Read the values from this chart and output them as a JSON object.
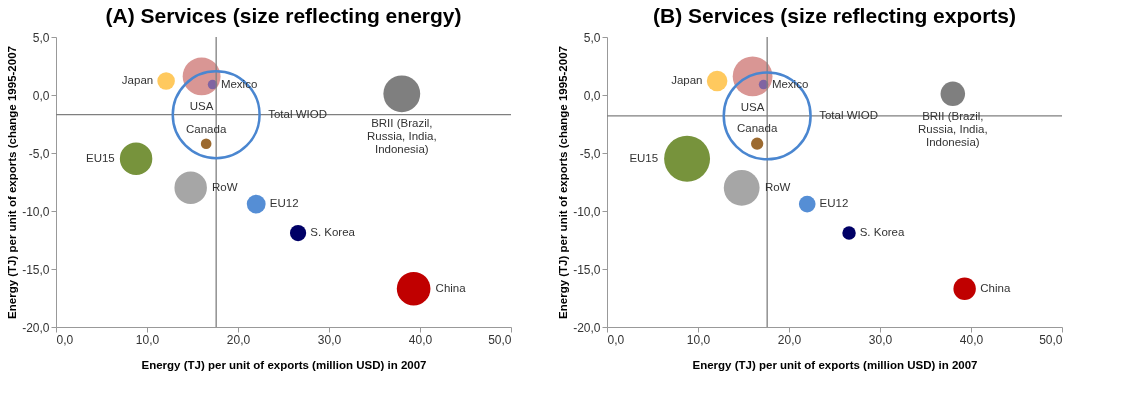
{
  "chart_data": [
    {
      "type": "bubble",
      "title": "(A) Services (size reflecting energy)",
      "xlabel": "Energy (TJ) per unit of exports (million USD) in 2007",
      "ylabel": "Energy (TJ) per unit of exports (change 1995-2007",
      "xlim": [
        0,
        50
      ],
      "ylim": [
        -20,
        5
      ],
      "xticks": [
        {
          "value": 0,
          "label": "0,0"
        },
        {
          "value": 10,
          "label": "10,0"
        },
        {
          "value": 20,
          "label": "20,0"
        },
        {
          "value": 30,
          "label": "30,0"
        },
        {
          "value": 40,
          "label": "40,0"
        },
        {
          "value": 50,
          "label": "50,0"
        }
      ],
      "yticks": [
        {
          "value": -20,
          "label": "-20,0"
        },
        {
          "value": -15,
          "label": "-15,0"
        },
        {
          "value": -10,
          "label": "-10,0"
        },
        {
          "value": -5,
          "label": "-5,0"
        },
        {
          "value": 0,
          "label": "0,0"
        },
        {
          "value": 5,
          "label": "5,0"
        }
      ],
      "ref_lines": [
        {
          "axis": "x",
          "value": 17.6,
          "color": "#7f7f7f"
        },
        {
          "axis": "y",
          "value": -1.7,
          "color": "#7f7f7f"
        }
      ],
      "series": [
        {
          "name": "USA",
          "color": "#d99694",
          "x": [
            16.0
          ],
          "values": [
            1.6
          ],
          "sizes": [
            0.19
          ]
        },
        {
          "name": "Japan",
          "color": "#ffc95e",
          "x": [
            12.1
          ],
          "values": [
            1.2
          ],
          "sizes": [
            0.041
          ]
        },
        {
          "name": "Mexico",
          "color": "#8064a2",
          "x": [
            17.2
          ],
          "values": [
            0.9
          ],
          "sizes": [
            0.012
          ]
        },
        {
          "name": "BRII (Brazil, Russia, India, Indonesia)",
          "color": "#7f7f7f",
          "x": [
            38.0
          ],
          "values": [
            0.1
          ],
          "sizes": [
            0.18
          ]
        },
        {
          "name": "Canada",
          "color": "#9c6a30",
          "x": [
            16.5
          ],
          "values": [
            -4.2
          ],
          "sizes": [
            0.015
          ]
        },
        {
          "name": "EU15",
          "color": "#77933c",
          "x": [
            8.8
          ],
          "values": [
            -5.5
          ],
          "sizes": [
            0.14
          ]
        },
        {
          "name": "RoW",
          "color": "#a6a6a6",
          "x": [
            14.8
          ],
          "values": [
            -8.0
          ],
          "sizes": [
            0.14
          ]
        },
        {
          "name": "EU12",
          "color": "#558ed5",
          "x": [
            22.0
          ],
          "values": [
            -9.4
          ],
          "sizes": [
            0.047
          ]
        },
        {
          "name": "S. Korea",
          "color": "#000066",
          "x": [
            26.6
          ],
          "values": [
            -11.9
          ],
          "sizes": [
            0.035
          ]
        },
        {
          "name": "China",
          "color": "#c00000",
          "x": [
            39.3
          ],
          "values": [
            -16.7
          ],
          "sizes": [
            0.15
          ]
        },
        {
          "name": "Total WIOD",
          "color": "#4a86d0",
          "x": [
            17.6
          ],
          "values": [
            -1.7
          ],
          "sizes": [
            1
          ],
          "line_style": "solid"
        }
      ]
    },
    {
      "type": "bubble",
      "title": "(B) Services (size reflecting exports)",
      "xlabel": "Energy (TJ) per unit of exports (million USD) in 2007",
      "ylabel": "Energy (TJ) per unit of exports (change 1995-2007",
      "xlim": [
        0,
        50
      ],
      "ylim": [
        -20,
        5
      ],
      "xticks": [
        {
          "value": 0,
          "label": "0,0"
        },
        {
          "value": 10,
          "label": "10,0"
        },
        {
          "value": 20,
          "label": "20,0"
        },
        {
          "value": 30,
          "label": "30,0"
        },
        {
          "value": 40,
          "label": "40,0"
        },
        {
          "value": 50,
          "label": "50,0"
        }
      ],
      "yticks": [
        {
          "value": -20,
          "label": "-20,0"
        },
        {
          "value": -15,
          "label": "-15,0"
        },
        {
          "value": -10,
          "label": "-10,0"
        },
        {
          "value": -5,
          "label": "-5,0"
        },
        {
          "value": 0,
          "label": "0,0"
        },
        {
          "value": 5,
          "label": "5,0"
        }
      ],
      "ref_lines": [
        {
          "axis": "x",
          "value": 17.6,
          "color": "#7f7f7f"
        },
        {
          "axis": "y",
          "value": -1.8,
          "color": "#7f7f7f"
        }
      ],
      "series": [
        {
          "name": "USA",
          "color": "#d99694",
          "x": [
            16.0
          ],
          "values": [
            1.6
          ],
          "sizes": [
            0.21
          ]
        },
        {
          "name": "Japan",
          "color": "#ffc95e",
          "x": [
            12.1
          ],
          "values": [
            1.2
          ],
          "sizes": [
            0.056
          ]
        },
        {
          "name": "Mexico",
          "color": "#8064a2",
          "x": [
            17.2
          ],
          "values": [
            0.9
          ],
          "sizes": [
            0.012
          ]
        },
        {
          "name": "BRII (Brazil, Russia, India, Indonesia)",
          "color": "#7f7f7f",
          "x": [
            38.0
          ],
          "values": [
            0.1
          ],
          "sizes": [
            0.08
          ]
        },
        {
          "name": "Canada",
          "color": "#9c6a30",
          "x": [
            16.5
          ],
          "values": [
            -4.2
          ],
          "sizes": [
            0.02
          ]
        },
        {
          "name": "EU15",
          "color": "#77933c",
          "x": [
            8.8
          ],
          "values": [
            -5.5
          ],
          "sizes": [
            0.28
          ]
        },
        {
          "name": "RoW",
          "color": "#a6a6a6",
          "x": [
            14.8
          ],
          "values": [
            -8.0
          ],
          "sizes": [
            0.17
          ]
        },
        {
          "name": "EU12",
          "color": "#558ed5",
          "x": [
            22.0
          ],
          "values": [
            -9.4
          ],
          "sizes": [
            0.037
          ]
        },
        {
          "name": "S. Korea",
          "color": "#000066",
          "x": [
            26.6
          ],
          "values": [
            -11.9
          ],
          "sizes": [
            0.024
          ]
        },
        {
          "name": "China",
          "color": "#c00000",
          "x": [
            39.3
          ],
          "values": [
            -16.7
          ],
          "sizes": [
            0.067
          ]
        },
        {
          "name": "Total WIOD",
          "color": "#4a86d0",
          "x": [
            17.6
          ],
          "values": [
            -1.8
          ],
          "sizes": [
            1
          ],
          "line_style": "solid"
        }
      ]
    }
  ]
}
